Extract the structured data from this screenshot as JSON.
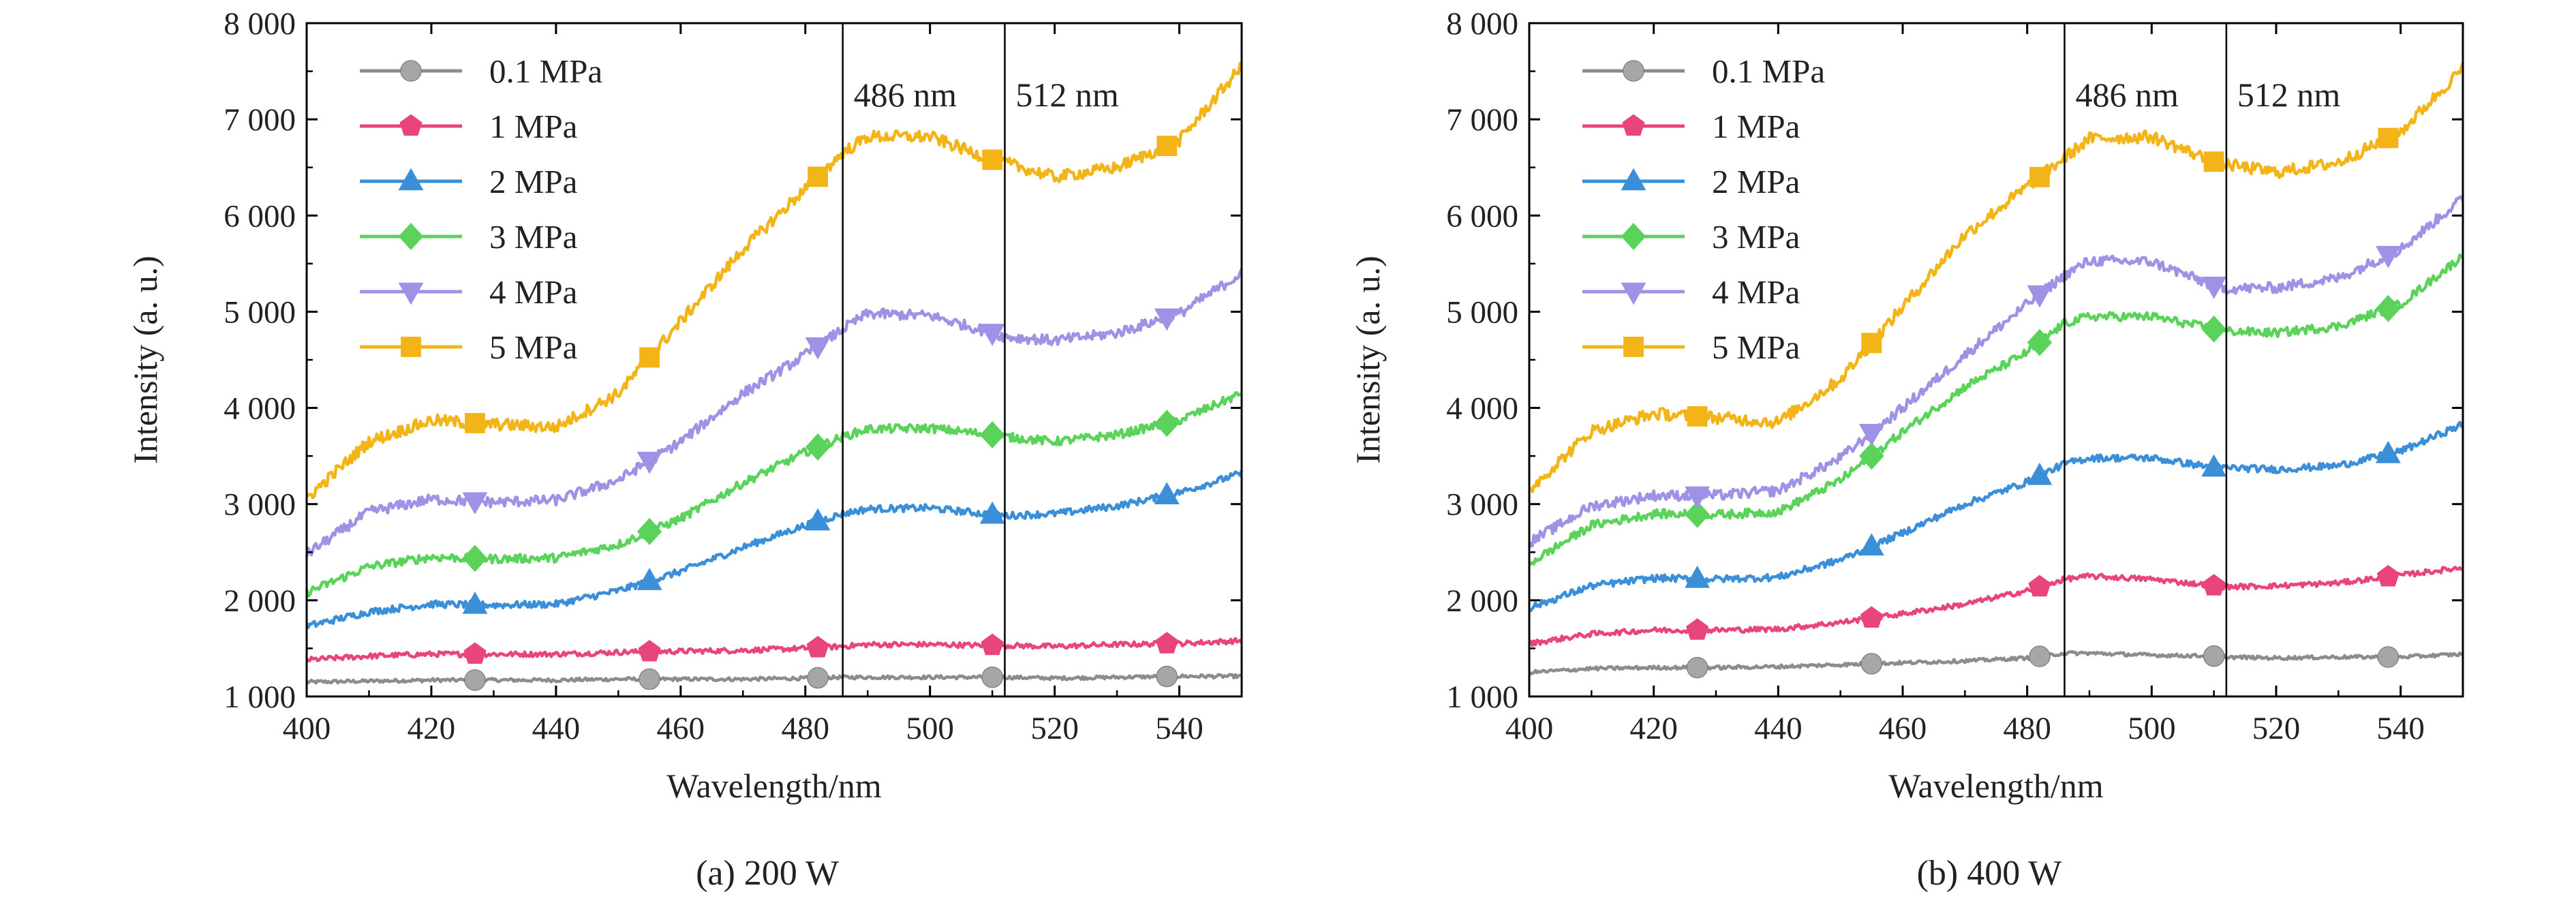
{
  "chart_data": [
    {
      "type": "line",
      "caption": "(a) 200 W",
      "xlabel": "Wavelength/nm",
      "ylabel": "Intensity (a. u.)",
      "xlim": [
        400,
        550
      ],
      "ylim": [
        1000,
        8000
      ],
      "xticks": [
        400,
        420,
        440,
        460,
        480,
        500,
        520,
        540
      ],
      "yticks": [
        1000,
        2000,
        3000,
        4000,
        5000,
        6000,
        7000,
        8000
      ],
      "ytick_labels": [
        "1 000",
        "2 000",
        "3 000",
        "4 000",
        "5 000",
        "6 000",
        "7 000",
        "8 000"
      ],
      "marker_x": [
        427,
        455,
        482,
        510,
        538
      ],
      "reference_lines": [
        {
          "x": 486,
          "label": "486 nm"
        },
        {
          "x": 512,
          "label": "512 nm"
        }
      ],
      "legend_position": "top-left",
      "grid": false,
      "series": [
        {
          "name": "0.1 MPa",
          "color": "#8c8c8c",
          "marker": "circle",
          "x": [
            400,
            410,
            420,
            430,
            440,
            450,
            460,
            470,
            480,
            486,
            490,
            500,
            510,
            512,
            520,
            530,
            540,
            550
          ],
          "y": [
            1150,
            1160,
            1170,
            1170,
            1170,
            1180,
            1180,
            1180,
            1190,
            1200,
            1200,
            1200,
            1200,
            1200,
            1190,
            1200,
            1210,
            1210
          ]
        },
        {
          "name": "1 MPa",
          "color": "#e8457c",
          "marker": "pentagon",
          "x": [
            400,
            410,
            420,
            430,
            440,
            450,
            460,
            470,
            480,
            486,
            490,
            500,
            510,
            512,
            520,
            530,
            540,
            550
          ],
          "y": [
            1380,
            1420,
            1440,
            1440,
            1440,
            1460,
            1470,
            1480,
            1500,
            1520,
            1540,
            1540,
            1530,
            1530,
            1520,
            1540,
            1550,
            1580
          ]
        },
        {
          "name": "2 MPa",
          "color": "#3a8fd8",
          "marker": "triangle-up",
          "x": [
            400,
            410,
            420,
            430,
            440,
            450,
            460,
            470,
            480,
            486,
            490,
            500,
            510,
            512,
            520,
            530,
            540,
            550
          ],
          "y": [
            1730,
            1880,
            1960,
            1950,
            1960,
            2100,
            2300,
            2550,
            2780,
            2900,
            2950,
            2960,
            2890,
            2880,
            2900,
            2980,
            3120,
            3320
          ]
        },
        {
          "name": "3 MPa",
          "color": "#5bd35b",
          "marker": "diamond",
          "x": [
            400,
            410,
            420,
            430,
            440,
            450,
            460,
            470,
            480,
            486,
            490,
            500,
            510,
            512,
            520,
            530,
            540,
            550
          ],
          "y": [
            2080,
            2350,
            2450,
            2430,
            2440,
            2580,
            2850,
            3220,
            3540,
            3700,
            3780,
            3790,
            3720,
            3700,
            3650,
            3720,
            3870,
            4150
          ]
        },
        {
          "name": "4 MPa",
          "color": "#9d92e6",
          "marker": "triangle-down",
          "x": [
            400,
            410,
            420,
            430,
            440,
            450,
            460,
            470,
            480,
            486,
            490,
            500,
            510,
            512,
            520,
            530,
            540,
            550
          ],
          "y": [
            2480,
            2920,
            3050,
            3020,
            3040,
            3250,
            3650,
            4150,
            4550,
            4820,
            4980,
            4960,
            4780,
            4740,
            4700,
            4780,
            4980,
            5400
          ]
        },
        {
          "name": "5 MPa",
          "color": "#f2b417",
          "marker": "square",
          "x": [
            400,
            410,
            420,
            430,
            440,
            450,
            460,
            470,
            480,
            486,
            490,
            500,
            510,
            512,
            520,
            530,
            540,
            550
          ],
          "y": [
            3060,
            3650,
            3870,
            3830,
            3800,
            4150,
            4900,
            5650,
            6280,
            6650,
            6820,
            6820,
            6580,
            6550,
            6400,
            6500,
            6780,
            7550
          ]
        }
      ]
    },
    {
      "type": "line",
      "caption": "(b) 400 W",
      "xlabel": "Wavelength/nm",
      "ylabel": "Intensity (a. u.)",
      "xlim": [
        400,
        550
      ],
      "ylim": [
        1000,
        8000
      ],
      "xticks": [
        400,
        420,
        440,
        460,
        480,
        500,
        520,
        540
      ],
      "yticks": [
        1000,
        2000,
        3000,
        4000,
        5000,
        6000,
        7000,
        8000
      ],
      "ytick_labels": [
        "1 000",
        "2 000",
        "3 000",
        "4 000",
        "5 000",
        "6 000",
        "7 000",
        "8 000"
      ],
      "marker_x": [
        427,
        455,
        482,
        510,
        538
      ],
      "reference_lines": [
        {
          "x": 486,
          "label": "486 nm"
        },
        {
          "x": 512,
          "label": "512 nm"
        }
      ],
      "legend_position": "top-left",
      "grid": false,
      "series": [
        {
          "name": "0.1 MPa",
          "color": "#8c8c8c",
          "marker": "circle",
          "x": [
            400,
            410,
            420,
            430,
            440,
            450,
            460,
            470,
            480,
            486,
            490,
            500,
            510,
            512,
            520,
            530,
            540,
            550
          ],
          "y": [
            1250,
            1290,
            1300,
            1300,
            1310,
            1330,
            1350,
            1370,
            1400,
            1450,
            1450,
            1430,
            1420,
            1410,
            1400,
            1410,
            1410,
            1440
          ]
        },
        {
          "name": "1 MPa",
          "color": "#e8457c",
          "marker": "pentagon",
          "x": [
            400,
            410,
            420,
            430,
            440,
            450,
            460,
            470,
            480,
            486,
            490,
            500,
            510,
            512,
            520,
            530,
            540,
            550
          ],
          "y": [
            1550,
            1650,
            1690,
            1690,
            1700,
            1770,
            1860,
            1960,
            2100,
            2220,
            2250,
            2220,
            2150,
            2140,
            2150,
            2180,
            2260,
            2340
          ]
        },
        {
          "name": "2 MPa",
          "color": "#3a8fd8",
          "marker": "triangle-up",
          "x": [
            400,
            410,
            420,
            430,
            440,
            450,
            460,
            470,
            480,
            486,
            490,
            500,
            510,
            512,
            520,
            530,
            540,
            550
          ],
          "y": [
            1920,
            2150,
            2230,
            2220,
            2240,
            2420,
            2700,
            3000,
            3230,
            3420,
            3480,
            3480,
            3380,
            3380,
            3360,
            3400,
            3550,
            3830
          ]
        },
        {
          "name": "3 MPa",
          "color": "#5bd35b",
          "marker": "diamond",
          "x": [
            400,
            410,
            420,
            430,
            440,
            450,
            460,
            470,
            480,
            486,
            490,
            500,
            510,
            512,
            520,
            530,
            540,
            550
          ],
          "y": [
            2380,
            2780,
            2900,
            2890,
            2920,
            3250,
            3750,
            4220,
            4580,
            4880,
            4950,
            4950,
            4820,
            4800,
            4780,
            4850,
            5080,
            5580
          ]
        },
        {
          "name": "4 MPa",
          "color": "#9d92e6",
          "marker": "triangle-down",
          "x": [
            400,
            410,
            420,
            430,
            440,
            450,
            460,
            470,
            480,
            486,
            490,
            500,
            510,
            512,
            520,
            530,
            540,
            550
          ],
          "y": [
            2600,
            2980,
            3090,
            3090,
            3140,
            3480,
            4000,
            4550,
            5080,
            5380,
            5530,
            5520,
            5270,
            5240,
            5250,
            5350,
            5650,
            6180
          ]
        },
        {
          "name": "5 MPa",
          "color": "#f2b417",
          "marker": "square",
          "x": [
            400,
            410,
            420,
            430,
            440,
            450,
            460,
            470,
            480,
            486,
            490,
            500,
            510,
            512,
            520,
            530,
            540,
            550
          ],
          "y": [
            3150,
            3760,
            3940,
            3900,
            3850,
            4300,
            5050,
            5800,
            6300,
            6600,
            6800,
            6820,
            6560,
            6530,
            6450,
            6550,
            6870,
            7530
          ]
        }
      ]
    }
  ]
}
